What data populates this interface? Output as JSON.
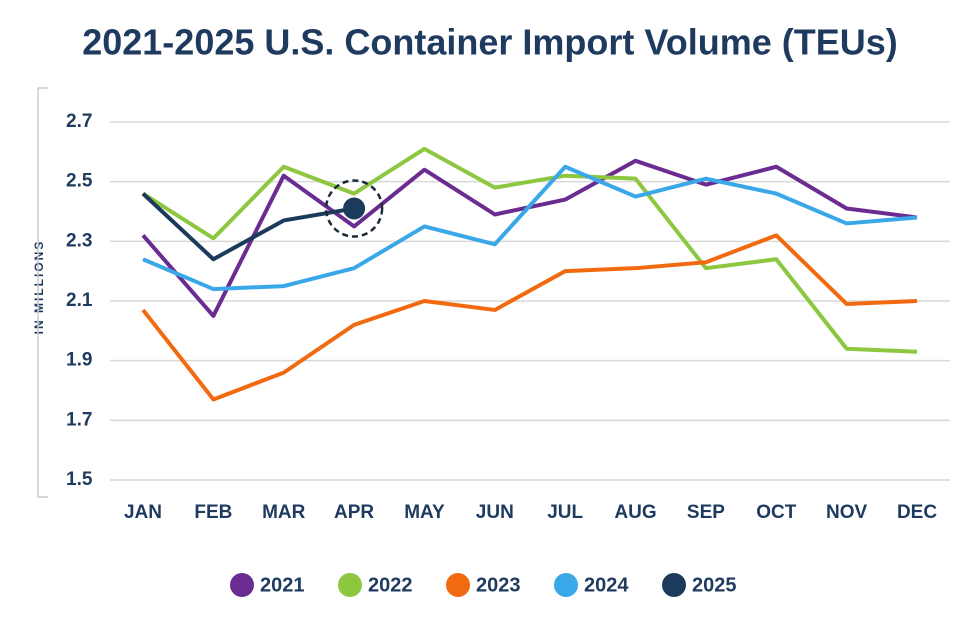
{
  "chart_data": {
    "type": "line",
    "title": "2021-2025 U.S. Container Import Volume (TEUs)",
    "ylabel": "IN MILLIONS",
    "categories": [
      "JAN",
      "FEB",
      "MAR",
      "APR",
      "MAY",
      "JUN",
      "JUL",
      "AUG",
      "SEP",
      "OCT",
      "NOV",
      "DEC"
    ],
    "ylim": [
      1.5,
      2.7
    ],
    "yticks": [
      1.5,
      1.7,
      1.9,
      2.1,
      2.3,
      2.5,
      2.7
    ],
    "grid": true,
    "legend": "bottom",
    "series": [
      {
        "name": "2021",
        "color": "#6b2c91",
        "values": [
          2.32,
          2.05,
          2.52,
          2.35,
          2.54,
          2.39,
          2.44,
          2.57,
          2.49,
          2.55,
          2.41,
          2.38
        ]
      },
      {
        "name": "2022",
        "color": "#8dc63f",
        "values": [
          2.46,
          2.31,
          2.55,
          2.46,
          2.61,
          2.48,
          2.52,
          2.51,
          2.21,
          2.24,
          1.94,
          1.93
        ]
      },
      {
        "name": "2023",
        "color": "#f26a10",
        "values": [
          2.07,
          1.77,
          1.86,
          2.02,
          2.1,
          2.07,
          2.2,
          2.21,
          2.23,
          2.32,
          2.09,
          2.1
        ]
      },
      {
        "name": "2024",
        "color": "#3aa8e8",
        "values": [
          2.24,
          2.14,
          2.15,
          2.21,
          2.35,
          2.29,
          2.55,
          2.45,
          2.51,
          2.46,
          2.36,
          2.38
        ]
      },
      {
        "name": "2025",
        "color": "#1b3a5c",
        "values": [
          2.46,
          2.24,
          2.37,
          2.41,
          null,
          null,
          null,
          null,
          null,
          null,
          null,
          null
        ]
      }
    ]
  }
}
